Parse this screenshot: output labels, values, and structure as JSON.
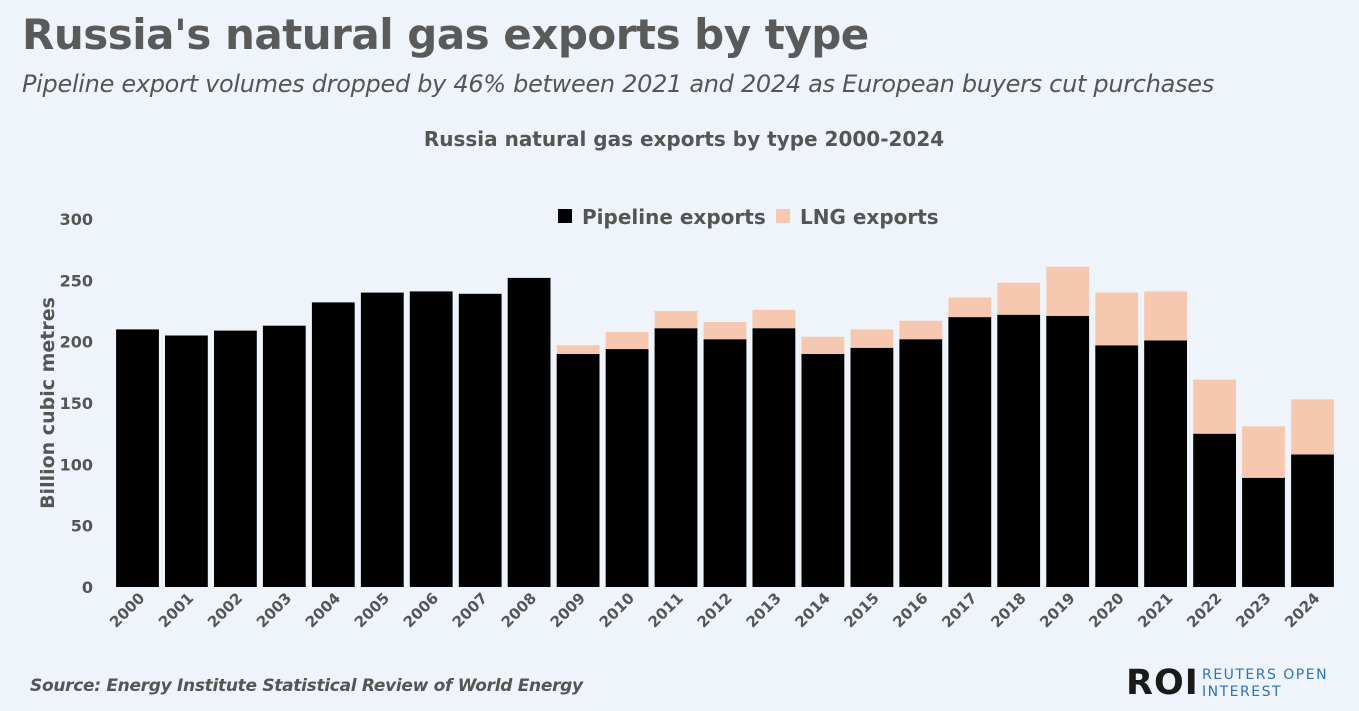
{
  "header": {
    "title": "Russia's natural gas exports by type",
    "subtitle": "Pipeline export volumes dropped by 46% between 2021 and 2024 as European buyers cut purchases"
  },
  "footer": {
    "source": "Source: Energy Institute Statistical Review of World Energy",
    "logo_mark": "ROI",
    "logo_line1": "REUTERS OPEN",
    "logo_line2": "INTEREST"
  },
  "colors": {
    "pipeline": "#000000",
    "lng": "#f7c8b0",
    "text": "#555555",
    "background": "#eef4f9"
  },
  "chart_data": {
    "type": "bar",
    "stacked": true,
    "title": "Russia natural gas exports by type 2000-2024",
    "xlabel": "",
    "ylabel": "Billion cubic metres",
    "ylim": [
      0,
      300
    ],
    "yticks": [
      0,
      50,
      100,
      150,
      200,
      250,
      300
    ],
    "legend_position": "top-center",
    "categories": [
      "2000",
      "2001",
      "2002",
      "2003",
      "2004",
      "2005",
      "2006",
      "2007",
      "2008",
      "2009",
      "2010",
      "2011",
      "2012",
      "2013",
      "2014",
      "2015",
      "2016",
      "2017",
      "2018",
      "2019",
      "2020",
      "2021",
      "2022",
      "2023",
      "2024"
    ],
    "series": [
      {
        "name": "Pipeline exports",
        "values": [
          210,
          205,
          209,
          213,
          232,
          240,
          241,
          239,
          252,
          190,
          194,
          211,
          202,
          211,
          190,
          195,
          202,
          220,
          222,
          221,
          197,
          201,
          125,
          89,
          108
        ]
      },
      {
        "name": "LNG exports",
        "values": [
          0,
          0,
          0,
          0,
          0,
          0,
          0,
          0,
          0,
          7,
          14,
          14,
          14,
          15,
          14,
          15,
          15,
          16,
          26,
          40,
          43,
          40,
          44,
          42,
          45
        ]
      }
    ]
  }
}
